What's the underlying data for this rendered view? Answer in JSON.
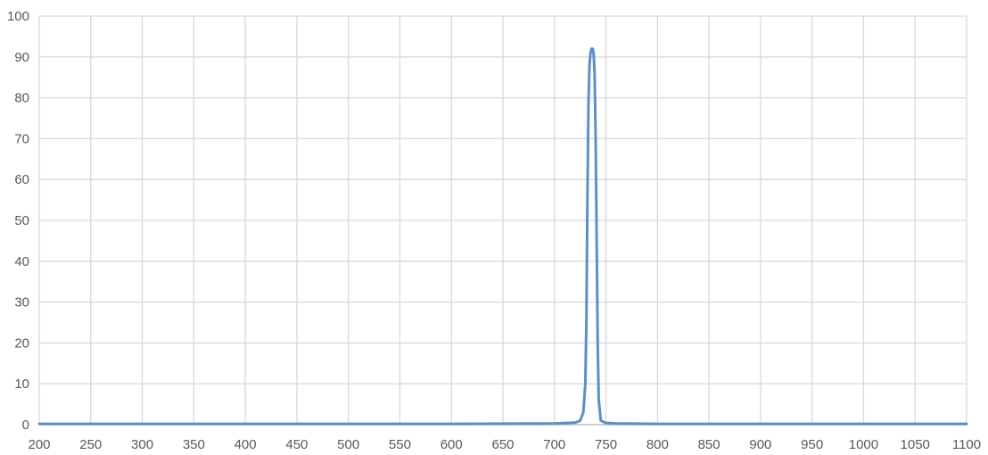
{
  "chart_data": {
    "type": "line",
    "title": "",
    "xlabel": "",
    "ylabel": "",
    "xlim": [
      200,
      1100
    ],
    "ylim": [
      0,
      100
    ],
    "x_ticks": [
      200,
      250,
      300,
      350,
      400,
      450,
      500,
      550,
      600,
      650,
      700,
      750,
      800,
      850,
      900,
      950,
      1000,
      1050,
      1100
    ],
    "y_ticks": [
      0,
      10,
      20,
      30,
      40,
      50,
      60,
      70,
      80,
      90,
      100
    ],
    "x_tick_labels": [
      "200",
      "250",
      "300",
      "350",
      "400",
      "450",
      "500",
      "550",
      "600",
      "650",
      "700",
      "750",
      "800",
      "850",
      "900",
      "950",
      "1000",
      "1050",
      "1100"
    ],
    "y_tick_labels": [
      "0",
      "10",
      "20",
      "30",
      "40",
      "50",
      "60",
      "70",
      "80",
      "90",
      "100"
    ],
    "grid": true,
    "legend": "none",
    "colors": {
      "series": "#5b8fc9",
      "grid": "#d9d9d9",
      "axis": "#bfbfbf",
      "tick_text": "#595959"
    },
    "series": [
      {
        "x": [
          200,
          300,
          400,
          500,
          600,
          700,
          720,
          725,
          728,
          730,
          731,
          732,
          733,
          734,
          735,
          736,
          737,
          738,
          739,
          740,
          741,
          742,
          743,
          745,
          750,
          760,
          800,
          900,
          1000,
          1100
        ],
        "y": [
          0.2,
          0.2,
          0.2,
          0.2,
          0.2,
          0.3,
          0.5,
          1,
          3,
          10,
          25,
          55,
          78,
          88,
          91,
          92,
          92,
          91,
          86,
          70,
          45,
          20,
          6,
          1,
          0.4,
          0.3,
          0.2,
          0.2,
          0.2,
          0.2
        ]
      }
    ]
  }
}
